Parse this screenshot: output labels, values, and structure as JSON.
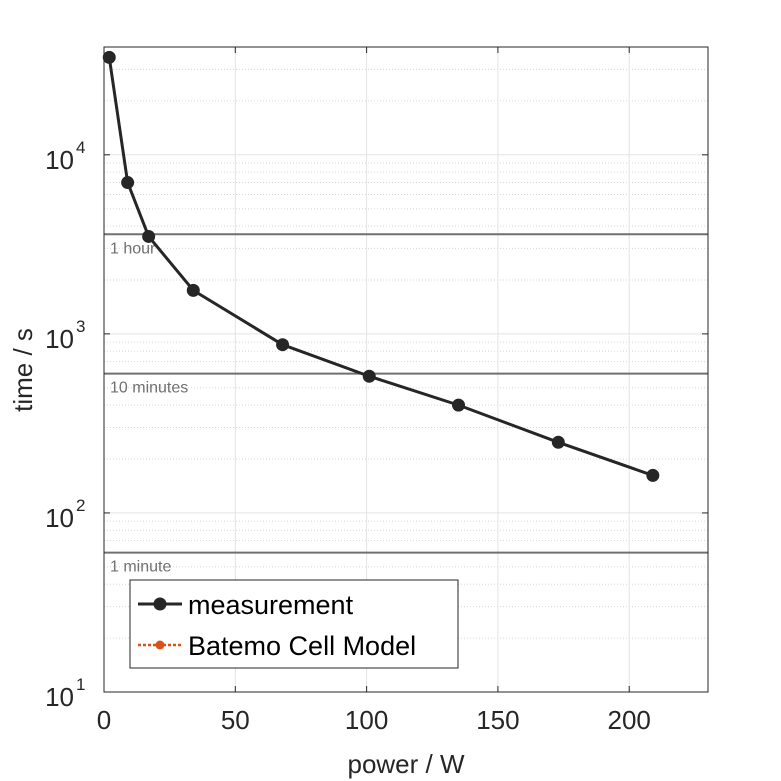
{
  "chart_data": {
    "type": "line",
    "xlabel": "power / W",
    "ylabel": "time / s",
    "xlim": [
      0,
      230
    ],
    "ylim": [
      10,
      40000
    ],
    "yscale": "log",
    "x_ticks": [
      0,
      50,
      100,
      150,
      200
    ],
    "y_ticks": [
      {
        "value": 10,
        "base": "10",
        "exp": "1"
      },
      {
        "value": 100,
        "base": "10",
        "exp": "2"
      },
      {
        "value": 1000,
        "base": "10",
        "exp": "3"
      },
      {
        "value": 10000,
        "base": "10",
        "exp": "4"
      }
    ],
    "grid": true,
    "series": [
      {
        "name": "measurement",
        "color": "#262626",
        "marker": "circle",
        "x": [
          2,
          9,
          17,
          34,
          68,
          101,
          135,
          173,
          209
        ],
        "y": [
          35000,
          7000,
          3500,
          1750,
          870,
          580,
          400,
          248,
          162
        ]
      },
      {
        "name": "Batemo Cell Model",
        "color": "#D95319",
        "marker": "circle",
        "dashed": true,
        "x": [],
        "y": []
      }
    ],
    "reference_lines": [
      {
        "label": "1 hour",
        "y": 3600,
        "color": "#707070"
      },
      {
        "label": "10 minutes",
        "y": 600,
        "color": "#707070"
      },
      {
        "label": "1 minute",
        "y": 60,
        "color": "#707070"
      }
    ],
    "legend_position": "bottom-left"
  }
}
